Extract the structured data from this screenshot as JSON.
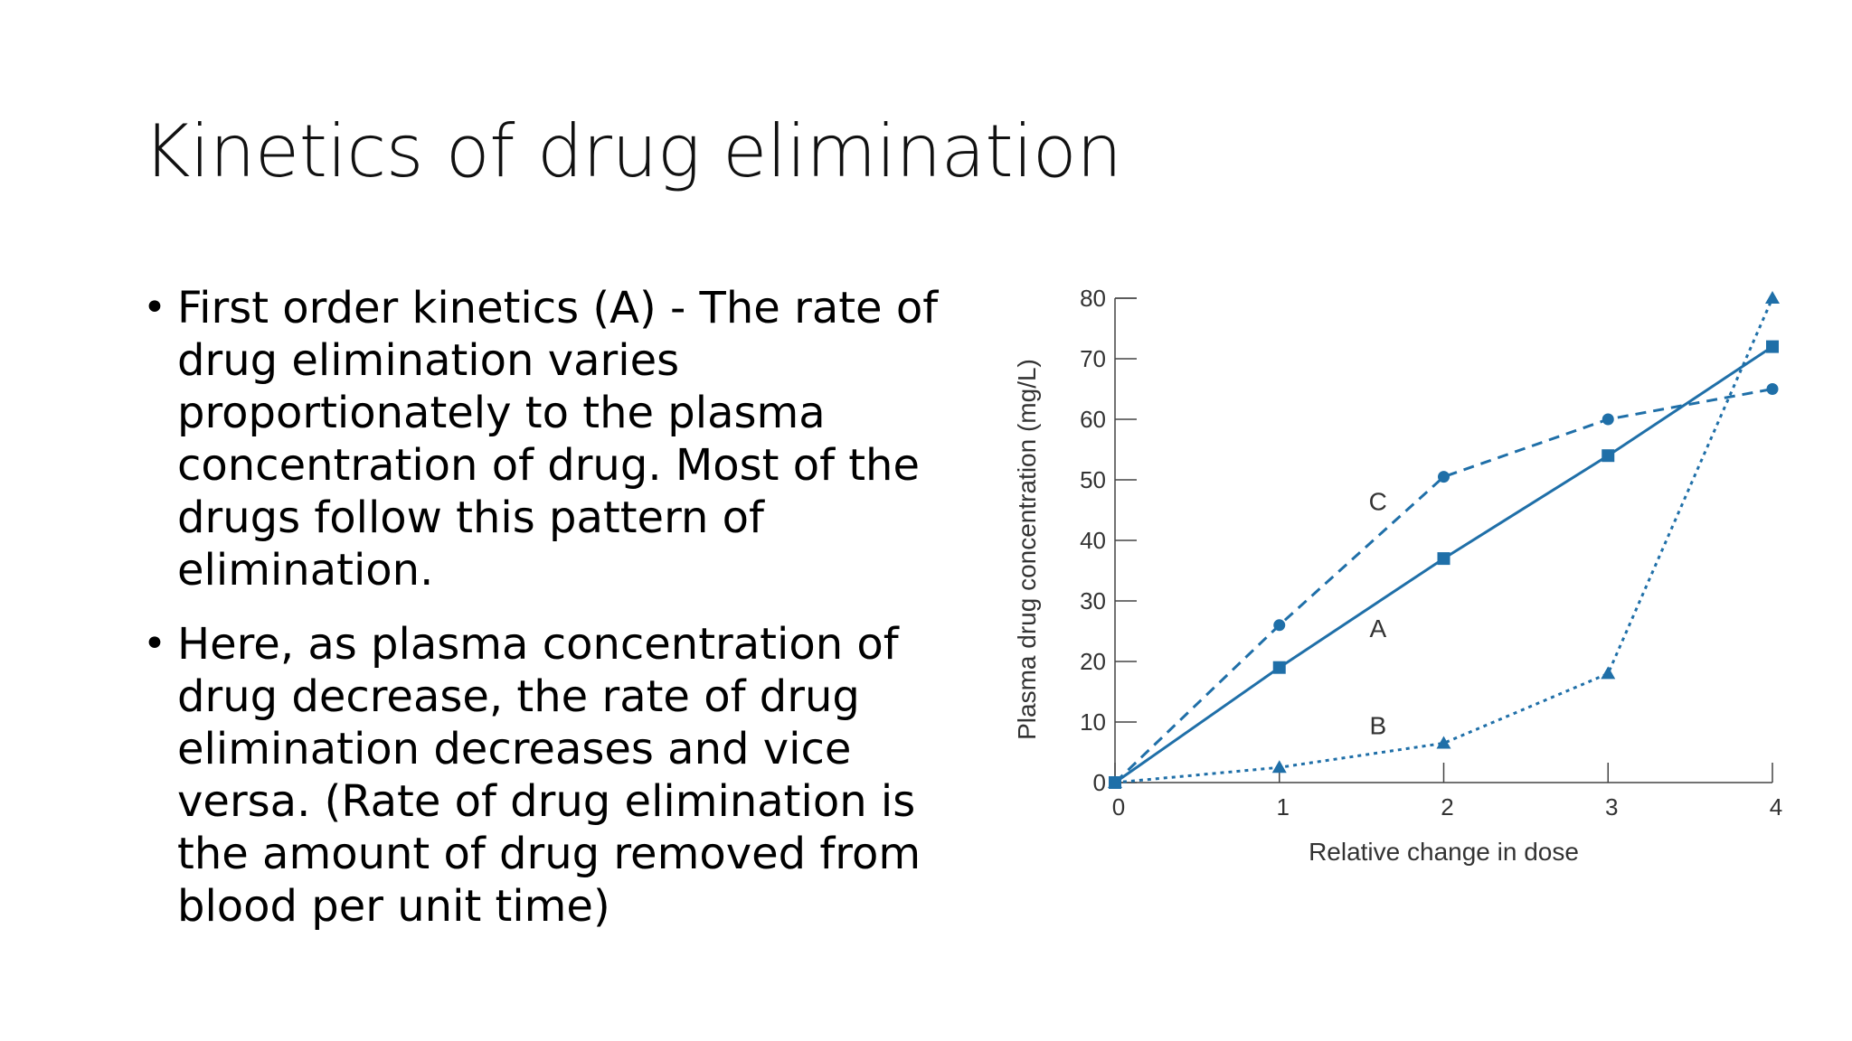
{
  "slide": {
    "title": "Kinetics of drug elimination",
    "bullets": [
      "First order kinetics (A) - The rate of drug elimination varies proportionately to the plasma concentration of drug. Most of the drugs follow this pattern of elimination.",
      "Here, as plasma concentration of drug decrease, the rate of drug elimination decreases and vice versa. (Rate of drug elimination is the amount of drug removed from blood per unit time)"
    ],
    "bullet_glyph": "•"
  },
  "chart_data": {
    "type": "line",
    "xlabel": "Relative change in dose",
    "ylabel": "Plasma drug concentration (mg/L)",
    "xlim": [
      0,
      4
    ],
    "ylim": [
      0,
      80
    ],
    "x_ticks": [
      0,
      1,
      2,
      3,
      4
    ],
    "y_ticks": [
      0,
      10,
      20,
      30,
      40,
      50,
      60,
      70,
      80
    ],
    "grid": false,
    "color": "#1f6fa8",
    "series": [
      {
        "name": "C",
        "style": "dashed",
        "marker": "circle",
        "x": [
          0,
          1,
          2,
          3,
          4
        ],
        "y": [
          0,
          26,
          50.5,
          60,
          65
        ]
      },
      {
        "name": "A",
        "style": "solid",
        "marker": "square",
        "x": [
          0,
          1,
          2,
          3,
          4
        ],
        "y": [
          0,
          19,
          37,
          54,
          72
        ]
      },
      {
        "name": "B",
        "style": "dotted",
        "marker": "triangle",
        "x": [
          0,
          1,
          2,
          3,
          4
        ],
        "y": [
          0,
          2.5,
          6.5,
          18,
          80
        ]
      }
    ]
  }
}
